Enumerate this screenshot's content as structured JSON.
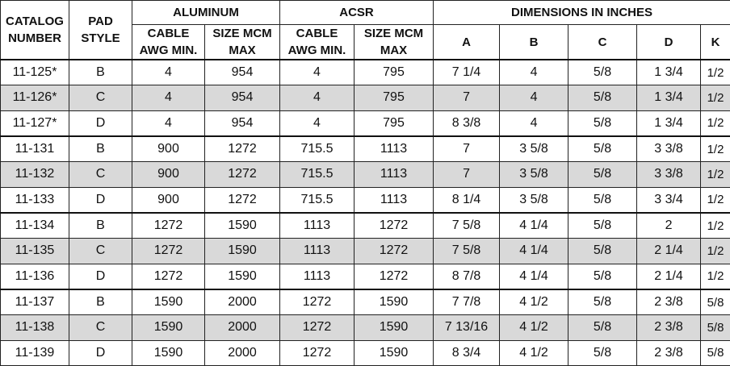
{
  "header": {
    "catalog_number": [
      "CATALOG",
      "NUMBER"
    ],
    "pad_style": [
      "PAD",
      "STYLE"
    ],
    "aluminum": "ALUMINUM",
    "acsr": "ACSR",
    "dimensions": "DIMENSIONS IN INCHES",
    "cable_awg_min": [
      "CABLE",
      "AWG MIN."
    ],
    "size_mcm_max": [
      "SIZE MCM",
      "MAX"
    ],
    "dim_cols": [
      "A",
      "B",
      "C",
      "D",
      "K"
    ]
  },
  "rows": [
    [
      "11-125*",
      "B",
      "4",
      "954",
      "4",
      "795",
      "7 1/4",
      "4",
      "5/8",
      "1 3/4",
      "1/2"
    ],
    [
      "11-126*",
      "C",
      "4",
      "954",
      "4",
      "795",
      "7",
      "4",
      "5/8",
      "1 3/4",
      "1/2"
    ],
    [
      "11-127*",
      "D",
      "4",
      "954",
      "4",
      "795",
      "8 3/8",
      "4",
      "5/8",
      "1 3/4",
      "1/2"
    ],
    [
      "11-131",
      "B",
      "900",
      "1272",
      "715.5",
      "1113",
      "7",
      "3 5/8",
      "5/8",
      "3 3/8",
      "1/2"
    ],
    [
      "11-132",
      "C",
      "900",
      "1272",
      "715.5",
      "1113",
      "7",
      "3 5/8",
      "5/8",
      "3 3/8",
      "1/2"
    ],
    [
      "11-133",
      "D",
      "900",
      "1272",
      "715.5",
      "1113",
      "8 1/4",
      "3 5/8",
      "5/8",
      "3 3/4",
      "1/2"
    ],
    [
      "11-134",
      "B",
      "1272",
      "1590",
      "1113",
      "1272",
      "7 5/8",
      "4 1/4",
      "5/8",
      "2",
      "1/2"
    ],
    [
      "11-135",
      "C",
      "1272",
      "1590",
      "1113",
      "1272",
      "7 5/8",
      "4 1/4",
      "5/8",
      "2 1/4",
      "1/2"
    ],
    [
      "11-136",
      "D",
      "1272",
      "1590",
      "1113",
      "1272",
      "8 7/8",
      "4 1/4",
      "5/8",
      "2 1/4",
      "1/2"
    ],
    [
      "11-137",
      "B",
      "1590",
      "2000",
      "1272",
      "1590",
      "7 7/8",
      "4 1/2",
      "5/8",
      "2 3/8",
      "5/8"
    ],
    [
      "11-138",
      "C",
      "1590",
      "2000",
      "1272",
      "1590",
      "7 13/16",
      "4 1/2",
      "5/8",
      "2 3/8",
      "5/8"
    ],
    [
      "11-139",
      "D",
      "1590",
      "2000",
      "1272",
      "1590",
      "8 3/4",
      "4 1/2",
      "5/8",
      "2 3/8",
      "5/8"
    ]
  ],
  "shaded_row_indices": [
    1,
    4,
    7,
    10
  ],
  "group_start_row_indices": [
    0,
    3,
    6,
    9
  ],
  "colors": {
    "shade": "#d9d9d9",
    "border": "#222222",
    "text": "#111111"
  }
}
